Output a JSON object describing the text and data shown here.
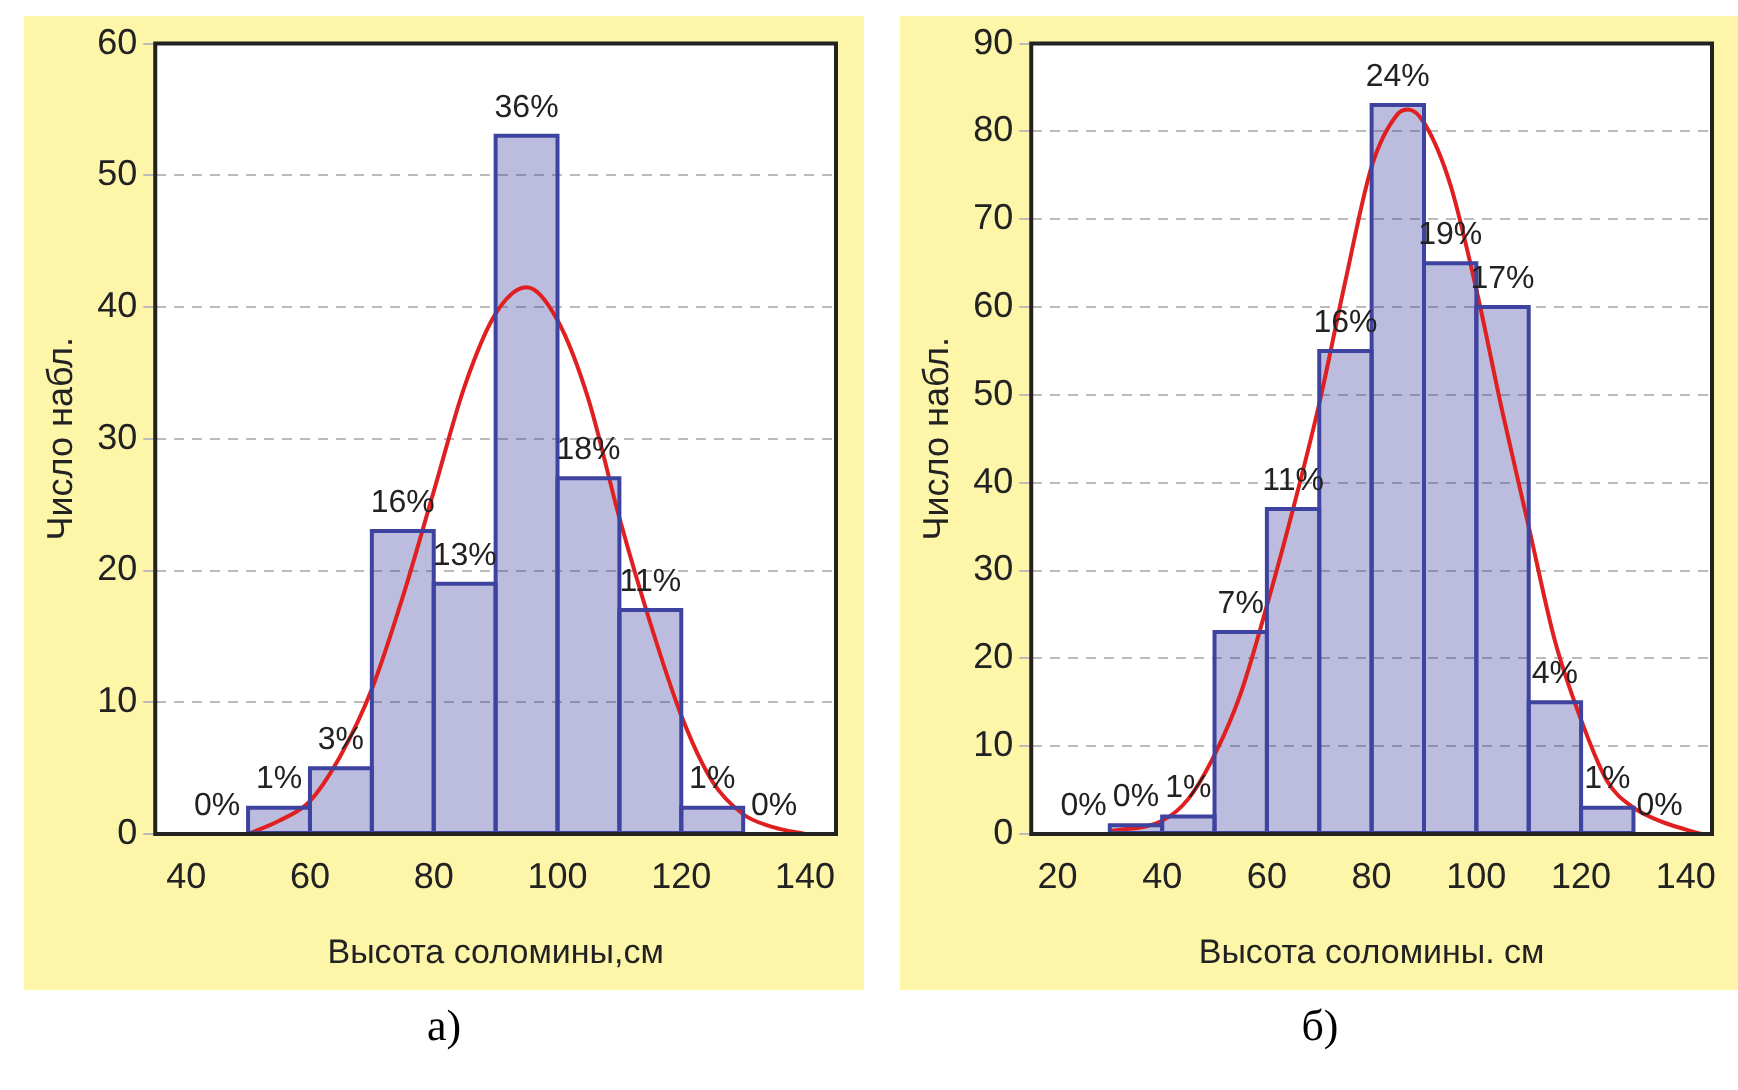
{
  "chart_data": [
    {
      "type": "histogram",
      "xlabel": "Высота соломины,см",
      "ylabel": "Число набл.",
      "xlim": [
        35,
        145
      ],
      "xticks": [
        40,
        60,
        80,
        100,
        120,
        140
      ],
      "ylim": [
        0,
        60
      ],
      "yticks": [
        0,
        10,
        20,
        30,
        40,
        50,
        60
      ],
      "grid": "y",
      "legend": false,
      "color": "#3f43a0",
      "bins": [
        40,
        50,
        60,
        70,
        80,
        90,
        100,
        110,
        120,
        130,
        140
      ],
      "values": [
        0,
        2,
        5,
        23,
        19,
        53,
        27,
        17,
        2,
        0
      ],
      "series": [
        {
          "type": "line",
          "color": "#e02020",
          "x": [
            50,
            55,
            60,
            65,
            70,
            75,
            80,
            85,
            90,
            95,
            100,
            105,
            110,
            115,
            120,
            125,
            130,
            135,
            140
          ],
          "values": [
            0,
            1,
            2.5,
            6,
            11,
            18,
            26,
            34,
            39.5,
            41.5,
            39,
            33,
            24,
            16,
            9,
            4,
            1.5,
            0.5,
            0
          ]
        }
      ],
      "annotations": [
        {
          "text": "0%",
          "x": 45,
          "y": 0
        },
        {
          "text": "1%",
          "x": 55,
          "y": 2
        },
        {
          "text": "3%",
          "x": 65,
          "y": 5
        },
        {
          "text": "16%",
          "x": 75,
          "y": 23
        },
        {
          "text": "13%",
          "x": 85,
          "y": 19
        },
        {
          "text": "36%",
          "x": 95,
          "y": 53
        },
        {
          "text": "18%",
          "x": 105,
          "y": 27
        },
        {
          "text": "11%",
          "x": 115,
          "y": 17
        },
        {
          "text": "1%",
          "x": 125,
          "y": 2
        },
        {
          "text": "0%",
          "x": 135,
          "y": 0
        },
        "а)"
      ]
    },
    {
      "type": "histogram",
      "xlabel": "Высота соломины. см",
      "ylabel": "Число набл.",
      "xlim": [
        15,
        145
      ],
      "xticks": [
        20,
        40,
        60,
        80,
        100,
        120,
        140
      ],
      "ylim": [
        0,
        90
      ],
      "yticks": [
        0,
        10,
        20,
        30,
        40,
        50,
        60,
        70,
        80,
        90
      ],
      "grid": "y",
      "legend": false,
      "color": "#3f43a0",
      "bins": [
        20,
        30,
        40,
        50,
        60,
        70,
        80,
        90,
        100,
        110,
        120,
        130,
        140
      ],
      "values": [
        0,
        1,
        2,
        23,
        37,
        55,
        83,
        65,
        60,
        15,
        3,
        0
      ],
      "series": [
        {
          "type": "line",
          "color": "#e02020",
          "x": [
            30,
            40,
            45,
            50,
            55,
            60,
            65,
            70,
            75,
            80,
            85,
            87,
            90,
            95,
            100,
            105,
            110,
            115,
            120,
            125,
            130,
            135,
            140,
            143
          ],
          "values": [
            0.3,
            1.5,
            4,
            9,
            16,
            26,
            37,
            49,
            63,
            76,
            82,
            82.5,
            81,
            74,
            62,
            48,
            35,
            22,
            13,
            6,
            3,
            1.5,
            0.5,
            0
          ]
        }
      ],
      "annotations": [
        {
          "text": "0%",
          "x": 25,
          "y": 0
        },
        {
          "text": "0%",
          "x": 35,
          "y": 1
        },
        {
          "text": "1%",
          "x": 45,
          "y": 2
        },
        {
          "text": "7%",
          "x": 55,
          "y": 23
        },
        {
          "text": "11%",
          "x": 65,
          "y": 37
        },
        {
          "text": "16%",
          "x": 75,
          "y": 55
        },
        {
          "text": "24%",
          "x": 85,
          "y": 83
        },
        {
          "text": "19%",
          "x": 95,
          "y": 65
        },
        {
          "text": "17%",
          "x": 105,
          "y": 60
        },
        {
          "text": "4%",
          "x": 115,
          "y": 15
        },
        {
          "text": "1%",
          "x": 125,
          "y": 3
        },
        {
          "text": "0%",
          "x": 135,
          "y": 0
        },
        "б)"
      ]
    }
  ]
}
